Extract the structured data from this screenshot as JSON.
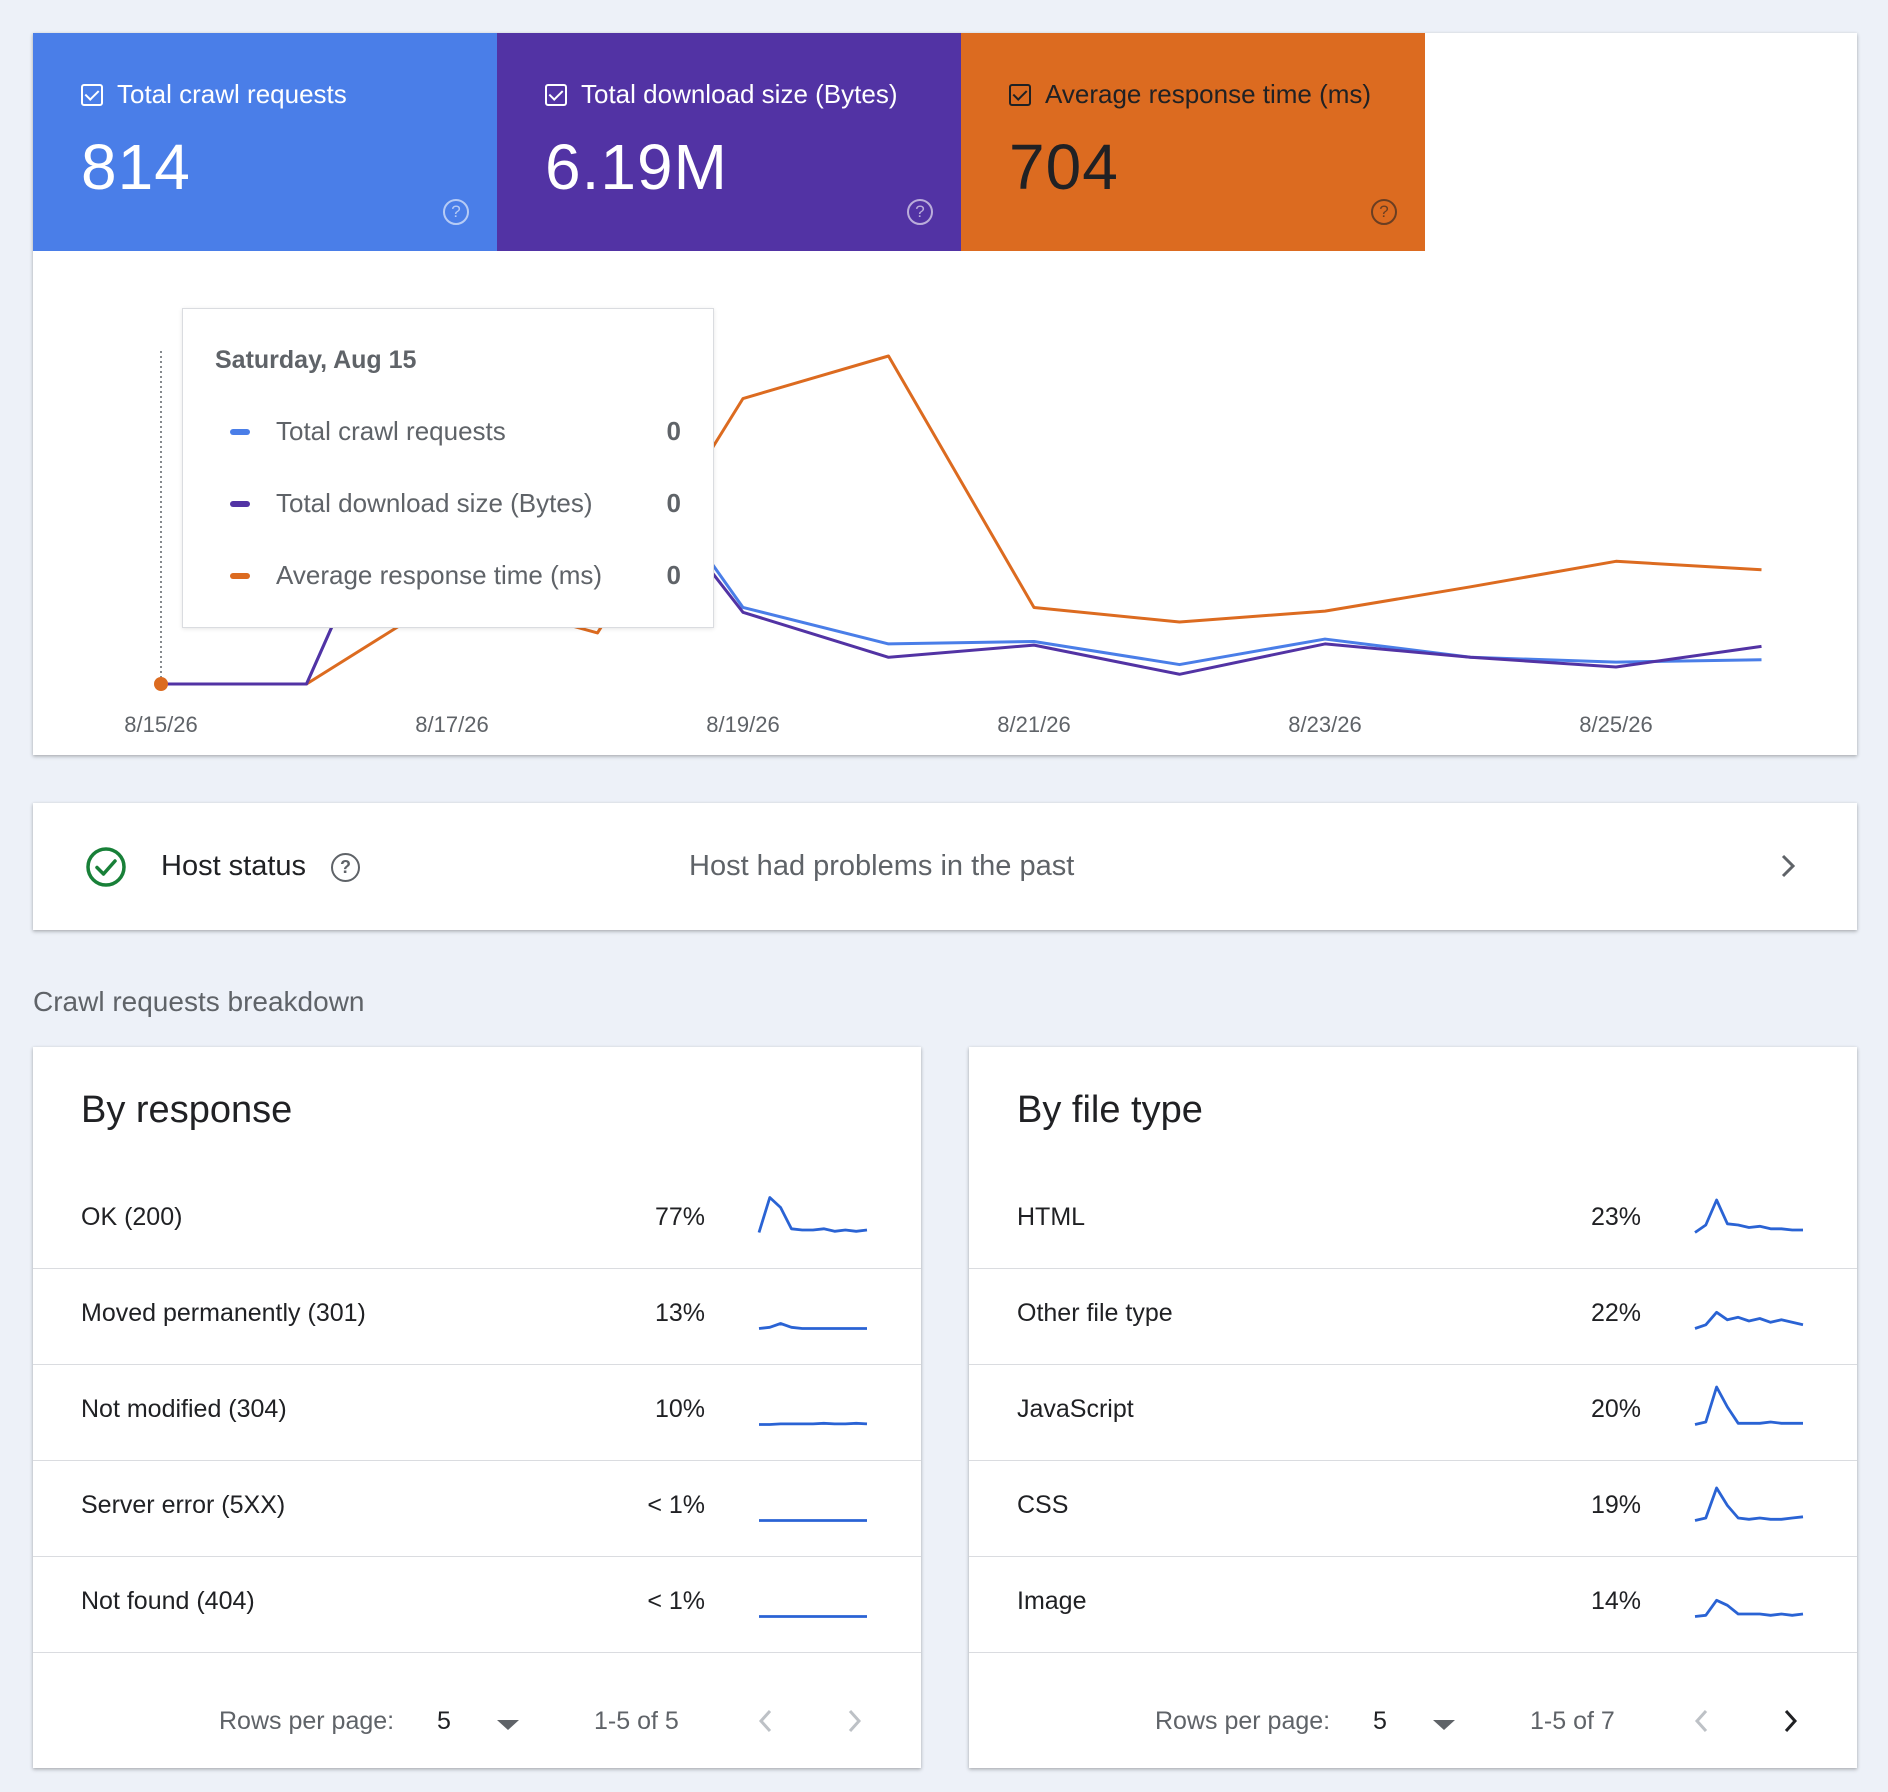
{
  "metrics": {
    "crawl": {
      "label": "Total crawl requests",
      "value": "814",
      "color": "#4a7ee8"
    },
    "size": {
      "label": "Total download size (Bytes)",
      "value": "6.19M",
      "color": "#5233a4"
    },
    "time": {
      "label": "Average response time (ms)",
      "value": "704",
      "color": "#dc6b20"
    },
    "help_glyph": "?"
  },
  "chart_data": {
    "type": "line",
    "x": [
      "8/15/26",
      "8/16/26",
      "8/17/26",
      "8/18/26",
      "8/19/26",
      "8/20/26",
      "8/21/26",
      "8/22/26",
      "8/23/26",
      "8/24/26",
      "8/25/26",
      "8/26/26"
    ],
    "x_tick_labels": [
      "8/15/26",
      "8/17/26",
      "8/19/26",
      "8/21/26",
      "8/23/26",
      "8/25/26"
    ],
    "series": [
      {
        "name": "Total crawl requests",
        "color": "#4a7ee8",
        "values": [
          0,
          0,
          270,
          232,
          63,
          33,
          35,
          16,
          37,
          22,
          18,
          20
        ]
      },
      {
        "name": "Total download size (Bytes)",
        "color": "#5233a4",
        "values": [
          0,
          0,
          270,
          213,
          59,
          22,
          32,
          8,
          33,
          22,
          14,
          31
        ]
      },
      {
        "name": "Average response time (ms)",
        "color": "#dc6b20",
        "values": [
          0,
          0,
          75,
          42,
          235,
          270,
          63,
          51,
          60,
          80,
          101,
          94
        ]
      }
    ],
    "selected_index": 0
  },
  "tooltip": {
    "date": "Saturday, Aug 15",
    "rows": [
      {
        "label": "Total crawl requests",
        "value": "0"
      },
      {
        "label": "Total download size (Bytes)",
        "value": "0"
      },
      {
        "label": "Average response time (ms)",
        "value": "0"
      }
    ]
  },
  "host": {
    "label": "Host status",
    "message": "Host had problems in the past",
    "help_glyph": "?",
    "ok_color": "#188038"
  },
  "breakdown_title": "Crawl requests breakdown",
  "by_response": {
    "title": "By response",
    "rows": [
      {
        "label": "OK (200)",
        "percent": "77%",
        "spark": [
          2,
          30,
          22,
          5,
          4,
          4,
          5,
          3,
          4,
          3,
          4
        ]
      },
      {
        "label": "Moved permanently (301)",
        "percent": "13%",
        "spark": [
          2,
          3,
          6,
          3,
          2,
          2,
          2,
          2,
          2,
          2,
          2
        ]
      },
      {
        "label": "Not modified (304)",
        "percent": "10%",
        "spark": [
          2,
          2,
          2.5,
          2.5,
          2.5,
          2.5,
          3,
          2.5,
          2.5,
          3,
          2.5
        ]
      },
      {
        "label": "Server error (5XX)",
        "percent": "< 1%",
        "spark": [
          2,
          2,
          2,
          2,
          2,
          2,
          2,
          2,
          2,
          2,
          2
        ]
      },
      {
        "label": "Not found (404)",
        "percent": "< 1%",
        "spark": [
          2,
          2,
          2,
          2,
          2,
          2,
          2,
          2,
          2,
          2,
          2
        ]
      }
    ],
    "rows_per_page_label": "Rows per page:",
    "rows_per_page": "5",
    "range": "1-5 of 5"
  },
  "by_file_type": {
    "title": "By file type",
    "rows": [
      {
        "label": "HTML",
        "percent": "23%",
        "spark": [
          2,
          8,
          28,
          9,
          8,
          6,
          7,
          5,
          5,
          4,
          4
        ]
      },
      {
        "label": "Other file type",
        "percent": "22%",
        "spark": [
          2,
          5,
          15,
          9,
          11,
          8,
          10,
          7,
          9,
          7,
          5
        ]
      },
      {
        "label": "JavaScript",
        "percent": "20%",
        "spark": [
          2,
          4,
          32,
          16,
          3,
          3,
          3,
          4,
          3,
          3,
          3
        ]
      },
      {
        "label": "CSS",
        "percent": "19%",
        "spark": [
          2,
          4,
          28,
          14,
          4,
          3,
          4,
          3,
          3,
          4,
          5
        ]
      },
      {
        "label": "Image",
        "percent": "14%",
        "spark": [
          2,
          3,
          15,
          11,
          4,
          4,
          4,
          3,
          4,
          3,
          4
        ]
      }
    ],
    "rows_per_page_label": "Rows per page:",
    "rows_per_page": "5",
    "range": "1-5 of 7"
  }
}
